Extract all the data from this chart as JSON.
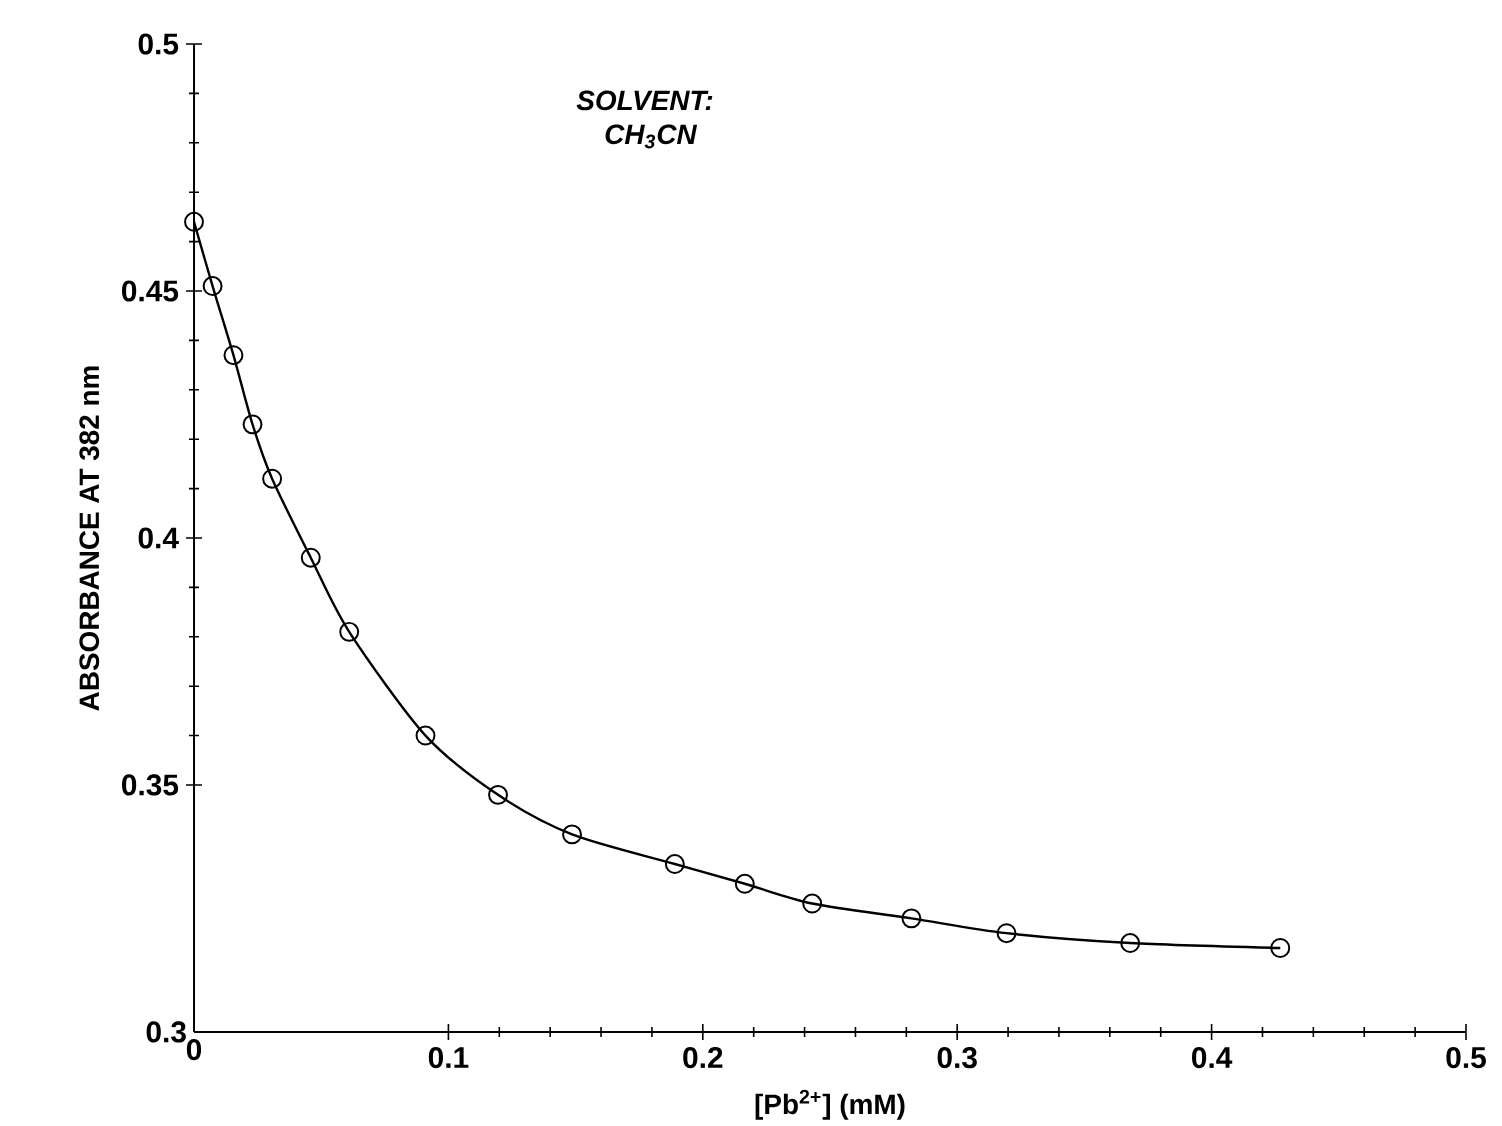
{
  "chart_data": {
    "type": "line",
    "xlabel": "[Pb$^{2+}$] (mM)",
    "ylabel": "ABSORBANCE AT 382 nm",
    "annotations": [
      "SOLVENT:",
      "CH$_{3}$CN"
    ],
    "x": [
      0,
      0.0073,
      0.0155,
      0.023,
      0.0307,
      0.0459,
      0.061,
      0.091,
      0.1195,
      0.1486,
      0.189,
      0.2165,
      0.243,
      0.282,
      0.3194,
      0.368,
      0.427
    ],
    "values": [
      0.464,
      0.451,
      0.437,
      0.423,
      0.412,
      0.396,
      0.381,
      0.36,
      0.348,
      0.34,
      0.334,
      0.33,
      0.326,
      0.323,
      0.32,
      0.318,
      0.317
    ],
    "color": "#000000",
    "marker": "circle",
    "line_style": "solid",
    "xlim": [
      0,
      0.5
    ],
    "xticks": [
      0,
      0.1,
      0.2,
      0.3,
      0.4,
      0.5
    ],
    "ylim": [
      0.3,
      0.5
    ],
    "yticks": [
      0.3,
      0.35,
      0.4,
      0.45,
      0.5
    ]
  }
}
